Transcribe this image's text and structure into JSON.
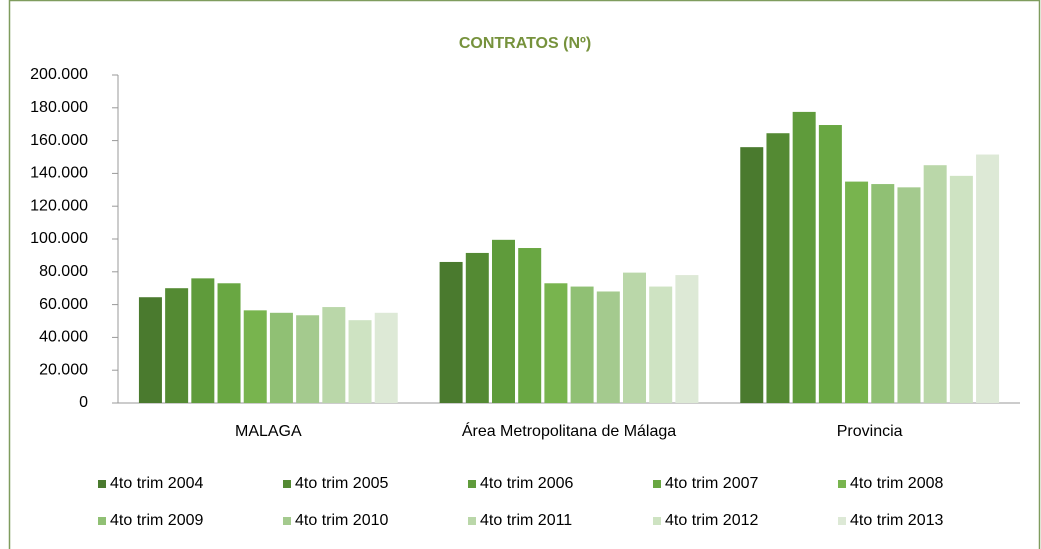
{
  "chart_data": {
    "type": "bar",
    "title": "CONTRATOS (Nº)",
    "categories": [
      "MALAGA",
      "Área Metropolitana de Málaga",
      "Provincia"
    ],
    "series": [
      {
        "name": "4to trim 2004",
        "color": "#4a7a2e",
        "values": [
          64500,
          86000,
          156000
        ]
      },
      {
        "name": "4to trim 2005",
        "color": "#548a33",
        "values": [
          70000,
          91500,
          164500
        ]
      },
      {
        "name": "4to trim 2006",
        "color": "#5f9b3b",
        "values": [
          76000,
          99500,
          177500
        ]
      },
      {
        "name": "4to trim 2007",
        "color": "#69a742",
        "values": [
          73000,
          94500,
          169500
        ]
      },
      {
        "name": "4to trim 2008",
        "color": "#78b44e",
        "values": [
          56500,
          73000,
          135000
        ]
      },
      {
        "name": "4to trim 2009",
        "color": "#90c074",
        "values": [
          55000,
          71000,
          133500
        ]
      },
      {
        "name": "4to trim 2010",
        "color": "#a4ca8e",
        "values": [
          53500,
          68000,
          131500
        ]
      },
      {
        "name": "4to trim 2011",
        "color": "#bad7a9",
        "values": [
          58500,
          79500,
          145000
        ]
      },
      {
        "name": "4to trim 2012",
        "color": "#cee3c2",
        "values": [
          50500,
          71000,
          138500
        ]
      },
      {
        "name": "4to trim 2013",
        "color": "#dde9d6",
        "values": [
          55000,
          78000,
          151500
        ]
      }
    ],
    "ylim": [
      0,
      200000
    ],
    "yticks": [
      0,
      {
        "value": 20000,
        "label": "20.000"
      },
      {
        "value": 40000,
        "label": "40.000"
      },
      {
        "value": 60000,
        "label": "60.000"
      },
      {
        "value": 80000,
        "label": "80.000"
      },
      {
        "value": 100000,
        "label": "100.000"
      },
      {
        "value": 120000,
        "label": "120.000"
      },
      {
        "value": 140000,
        "label": "140.000"
      },
      {
        "value": 160000,
        "label": "160.000"
      },
      {
        "value": 180000,
        "label": "180.000"
      },
      {
        "value": 200000,
        "label": "200.000"
      }
    ],
    "legend": "bottom",
    "grid": false
  }
}
